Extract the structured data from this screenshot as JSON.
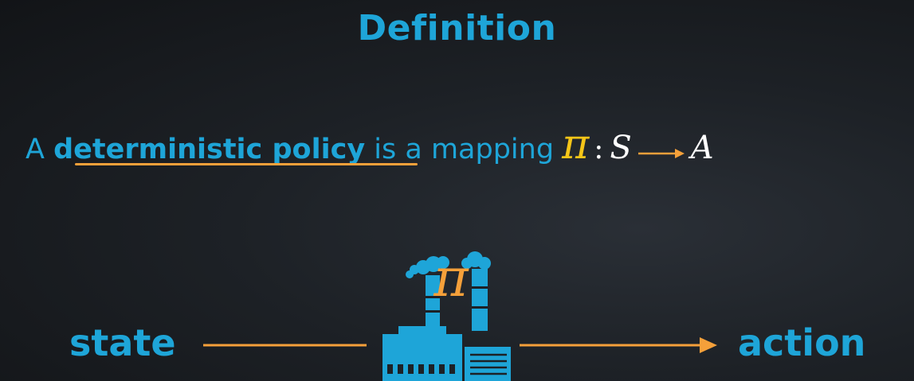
{
  "title": "Definition",
  "sentence": {
    "prefix": "A",
    "keyword": "deterministic policy",
    "middle": "is a mapping",
    "pi": "π",
    "colon": ":",
    "domain": "S",
    "codomain": "A"
  },
  "diagram": {
    "input_label": "state",
    "output_label": "action",
    "factory_symbol": "π",
    "factory_icon": "factory-icon"
  },
  "colors": {
    "accent_blue": "#1ea5d8",
    "accent_orange": "#f5a03a",
    "pi_yellow": "#f5c518",
    "background": "#1d2126"
  }
}
